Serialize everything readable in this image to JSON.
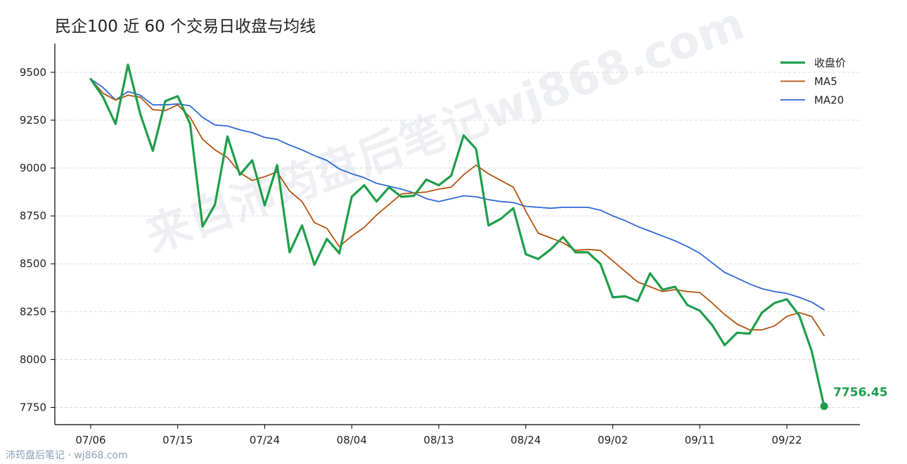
{
  "title": "民企100 近 60 个交易日收盘与均线",
  "footer": "沛筠盘后笔记 · wj868.com",
  "watermark": "来自沛筠盘后笔记wj868.com",
  "colors": {
    "close": "#1e9e4a",
    "ma5": "#b5530f",
    "ma20": "#2f6ad8",
    "axis": "#000000",
    "grid": "#d9d9d9"
  },
  "chart_data": {
    "type": "line",
    "ylim": [
      7660,
      9650
    ],
    "yticks": [
      7750,
      8000,
      8250,
      8500,
      8750,
      9000,
      9250,
      9500
    ],
    "x_ticks": [
      {
        "i": 0,
        "label": "07/06"
      },
      {
        "i": 7,
        "label": "07/15"
      },
      {
        "i": 14,
        "label": "07/24"
      },
      {
        "i": 21,
        "label": "08/04"
      },
      {
        "i": 28,
        "label": "08/13"
      },
      {
        "i": 35,
        "label": "08/24"
      },
      {
        "i": 42,
        "label": "09/02"
      },
      {
        "i": 49,
        "label": "09/11"
      },
      {
        "i": 56,
        "label": "09/22"
      }
    ],
    "grid": "horizontal dashed",
    "legend_position": "top-right",
    "last_value_label": "7756.45",
    "series": [
      {
        "name": "收盘价",
        "key": "close",
        "values": [
          9465,
          9370,
          9230,
          9540,
          9280,
          9090,
          9350,
          9375,
          9230,
          8695,
          8810,
          9165,
          8965,
          9040,
          8805,
          9015,
          8560,
          8700,
          8495,
          8630,
          8555,
          8850,
          8910,
          8825,
          8900,
          8850,
          8855,
          8940,
          8910,
          8960,
          9170,
          9100,
          8700,
          8735,
          8790,
          8550,
          8525,
          8575,
          8640,
          8560,
          8560,
          8500,
          8325,
          8330,
          8305,
          8450,
          8365,
          8380,
          8285,
          8255,
          8180,
          8075,
          8140,
          8135,
          8245,
          8295,
          8315,
          8230,
          8045,
          7756.45
        ]
      },
      {
        "name": "MA5",
        "key": "ma5",
        "values": [
          9465,
          9390,
          9355,
          9380,
          9370,
          9305,
          9300,
          9330,
          9265,
          9150,
          9095,
          9055,
          8975,
          8935,
          8955,
          8980,
          8880,
          8825,
          8715,
          8685,
          8590,
          8645,
          8690,
          8755,
          8810,
          8865,
          8870,
          8875,
          8890,
          8900,
          8965,
          9015,
          8970,
          8935,
          8900,
          8775,
          8660,
          8635,
          8610,
          8570,
          8575,
          8570,
          8515,
          8460,
          8405,
          8380,
          8355,
          8365,
          8355,
          8350,
          8295,
          8235,
          8185,
          8155,
          8155,
          8175,
          8225,
          8245,
          8225,
          8125
        ]
      },
      {
        "name": "MA20",
        "key": "ma20",
        "values": [
          9465,
          9420,
          9355,
          9400,
          9380,
          9330,
          9330,
          9335,
          9325,
          9265,
          9225,
          9220,
          9200,
          9185,
          9160,
          9150,
          9120,
          9095,
          9065,
          9040,
          8995,
          8970,
          8950,
          8920,
          8905,
          8890,
          8870,
          8840,
          8825,
          8840,
          8855,
          8850,
          8835,
          8825,
          8820,
          8800,
          8795,
          8790,
          8795,
          8795,
          8795,
          8780,
          8750,
          8725,
          8695,
          8670,
          8645,
          8620,
          8590,
          8555,
          8505,
          8455,
          8425,
          8395,
          8370,
          8355,
          8345,
          8325,
          8300,
          8260
        ]
      }
    ]
  }
}
